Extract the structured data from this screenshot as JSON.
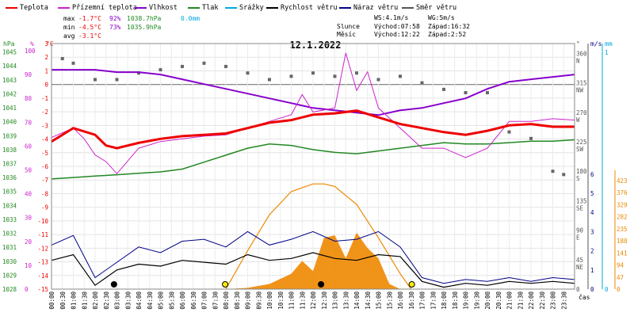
{
  "chart_data": {
    "type": "line",
    "title": "12.1.2022",
    "legend": [
      {
        "name": "Teplota",
        "color": "#ee0000"
      },
      {
        "name": "Přízemní teplota",
        "color": "#cc22cc"
      },
      {
        "name": "Vlhkost",
        "color": "#8800cc"
      },
      {
        "name": "Tlak",
        "color": "#228822"
      },
      {
        "name": "Srážky",
        "color": "#00aadd"
      },
      {
        "name": "Rychlost větru",
        "color": "#000000"
      },
      {
        "name": "Náraz větru",
        "color": "#000088"
      },
      {
        "name": "Směr větru",
        "color": "#555555"
      }
    ],
    "stats": {
      "max": {
        "label": "max",
        "temp": "-1.7°C",
        "hum": "92%",
        "press": "1038.7hPa",
        "rain": "0.0mm"
      },
      "min": {
        "label": "min",
        "temp": "-4.5°C",
        "hum": "73%",
        "press": "1035.9hPa"
      },
      "avg": {
        "label": "avg",
        "temp": "-3.1°C"
      }
    },
    "wind_info": {
      "ws": "WS:4.1m/s",
      "wg": "WG:5m/s"
    },
    "sun_info": {
      "label": "Slunce",
      "rise": "Východ:07:58",
      "set": "Západ:16:32"
    },
    "moon_info": {
      "label": "Měsíc",
      "rise": "Východ:12:22",
      "set": "Západ:2:52"
    },
    "axes": {
      "hpa": {
        "label": "hPa",
        "ticks": [
          "1045",
          "1044",
          "1043",
          "1042",
          "1041",
          "1040",
          "1039",
          "1038",
          "1037",
          "1036",
          "1035",
          "1034",
          "1033",
          "1032",
          "1031",
          "1030",
          "1029",
          "1028"
        ]
      },
      "pct": {
        "label": "%",
        "ticks": [
          "100",
          "90",
          "80",
          "70",
          "60",
          "50",
          "40",
          "30",
          "20",
          "10",
          "0"
        ]
      },
      "degc": {
        "label": "°C",
        "ticks": [
          "3",
          "2",
          "1",
          "0",
          "-1",
          "-2",
          "-3",
          "-4",
          "-5",
          "-6",
          "-7",
          "-8",
          "-9",
          "-10",
          "-11",
          "-12",
          "-13",
          "-14",
          "-15"
        ]
      },
      "dir_deg": {
        "label": "°",
        "ticks": [
          "360",
          "315",
          "270",
          "225",
          "180",
          "135",
          "90",
          "45",
          "0"
        ]
      },
      "dir_lbl": {
        "ticks": [
          "N",
          "NW",
          "W",
          "SW",
          "S",
          "SE",
          "E",
          "NE"
        ]
      },
      "ms": {
        "label": "m/s",
        "ticks": [
          "6",
          "5",
          "4",
          "3",
          "2",
          "1",
          "0"
        ]
      },
      "mm": {
        "label": "mm",
        "ticks": [
          "1",
          "0"
        ]
      },
      "rad": {
        "ticks": [
          "423",
          "376",
          "329",
          "282",
          "235",
          "188",
          "141",
          "94",
          "47",
          "0"
        ]
      },
      "x": {
        "label": "čas",
        "ticks": [
          "00:00",
          "00:30",
          "01:00",
          "01:30",
          "02:00",
          "02:30",
          "03:00",
          "03:30",
          "04:00",
          "04:30",
          "05:00",
          "05:30",
          "06:00",
          "06:30",
          "07:00",
          "07:30",
          "08:00",
          "08:30",
          "09:00",
          "09:30",
          "10:00",
          "10:30",
          "11:00",
          "11:30",
          "12:00",
          "12:30",
          "13:00",
          "13:30",
          "14:00",
          "14:30",
          "15:00",
          "15:30",
          "16:00",
          "16:30",
          "17:00",
          "17:30",
          "18:00",
          "18:30",
          "19:00",
          "19:30",
          "20:00",
          "20:30",
          "21:00",
          "21:30",
          "22:00",
          "22:30",
          "23:00",
          "23:30"
        ]
      }
    },
    "series": {
      "temperature": {
        "x": [
          0,
          1,
          2,
          2.5,
          3,
          4,
          5,
          6,
          7,
          8,
          9,
          10,
          11,
          12,
          13,
          14,
          15,
          16,
          17,
          18,
          19,
          20,
          21,
          22,
          23,
          24
        ],
        "y": [
          -4.0,
          -3.0,
          -3.5,
          -4.3,
          -4.5,
          -4.1,
          -3.8,
          -3.6,
          -3.5,
          -3.4,
          -3.0,
          -2.6,
          -2.4,
          -2.0,
          -1.9,
          -1.7,
          -2.2,
          -2.7,
          -3.0,
          -3.3,
          -3.5,
          -3.2,
          -2.8,
          -2.7,
          -2.9,
          -2.9
        ]
      },
      "ground_temperature": {
        "x": [
          0,
          1,
          1.5,
          2,
          2.5,
          3,
          4,
          5,
          6,
          7,
          8,
          9,
          10,
          11,
          11.5,
          12,
          13,
          13.5,
          14,
          14.5,
          15,
          16,
          17,
          18,
          19,
          20,
          21,
          22,
          23,
          24
        ],
        "y": [
          -3.7,
          -3.0,
          -3.8,
          -5.0,
          -5.5,
          -6.4,
          -4.5,
          -4.0,
          -3.8,
          -3.6,
          -3.5,
          -3.0,
          -2.5,
          -2.0,
          -0.5,
          -1.8,
          -1.5,
          2.6,
          -0.2,
          1.2,
          -1.5,
          -3.0,
          -4.5,
          -4.5,
          -5.2,
          -4.5,
          -2.5,
          -2.5,
          -2.3,
          -2.4
        ]
      },
      "humidity": {
        "x": [
          0,
          1,
          2,
          3,
          4,
          5,
          6,
          7,
          8,
          9,
          10,
          11,
          12,
          13,
          14,
          15,
          16,
          17,
          18,
          19,
          20,
          21,
          22,
          23,
          24
        ],
        "y": [
          92,
          92,
          92,
          91,
          91,
          90,
          88,
          86,
          84,
          82,
          80,
          78,
          76,
          75,
          74,
          73,
          75,
          76,
          78,
          80,
          84,
          87,
          88,
          89,
          90
        ]
      },
      "pressure": {
        "x": [
          0,
          1,
          2,
          3,
          4,
          5,
          6,
          7,
          8,
          9,
          10,
          11,
          12,
          13,
          14,
          15,
          16,
          17,
          18,
          19,
          20,
          21,
          22,
          23,
          24
        ],
        "y": [
          1035.9,
          1036.0,
          1036.1,
          1036.2,
          1036.3,
          1036.4,
          1036.6,
          1037.1,
          1037.6,
          1038.1,
          1038.4,
          1038.3,
          1038.0,
          1037.8,
          1037.7,
          1037.9,
          1038.1,
          1038.3,
          1038.5,
          1038.4,
          1038.4,
          1038.5,
          1038.6,
          1038.6,
          1038.7
        ]
      },
      "wind_speed": {
        "x": [
          0,
          1,
          2,
          3,
          4,
          5,
          6,
          7,
          8,
          9,
          10,
          11,
          12,
          13,
          14,
          15,
          16,
          17,
          18,
          19,
          20,
          21,
          22,
          23,
          24
        ],
        "y": [
          1.5,
          1.8,
          0.2,
          1.0,
          1.3,
          1.2,
          1.5,
          1.4,
          1.3,
          1.8,
          1.5,
          1.6,
          1.9,
          1.6,
          1.5,
          1.8,
          1.7,
          0.4,
          0.1,
          0.3,
          0.2,
          0.4,
          0.3,
          0.4,
          0.3
        ]
      },
      "wind_gust": {
        "x": [
          0,
          1,
          2,
          3,
          4,
          5,
          6,
          7,
          8,
          9,
          10,
          11,
          12,
          13,
          14,
          15,
          16,
          17,
          18,
          19,
          20,
          21,
          22,
          23,
          24
        ],
        "y": [
          2.3,
          2.8,
          0.6,
          1.4,
          2.2,
          1.9,
          2.5,
          2.6,
          2.2,
          3.0,
          2.3,
          2.6,
          3.0,
          2.5,
          2.6,
          3.0,
          2.2,
          0.6,
          0.3,
          0.5,
          0.4,
          0.6,
          0.4,
          0.6,
          0.5
        ]
      },
      "solar_radiation": {
        "x": [
          8,
          9,
          10,
          11,
          11.5,
          12,
          12.5,
          13,
          13.5,
          14,
          14.5,
          15,
          15.5,
          16
        ],
        "y": [
          0,
          5,
          20,
          60,
          110,
          70,
          200,
          210,
          120,
          220,
          160,
          120,
          20,
          0
        ]
      },
      "theoretical_radiation": {
        "x": [
          8,
          9,
          10,
          11,
          12,
          12.5,
          13,
          14,
          15,
          16,
          16.5
        ],
        "y": [
          0,
          150,
          290,
          380,
          410,
          410,
          400,
          330,
          200,
          60,
          0
        ]
      },
      "wind_direction": {
        "x": [
          0.5,
          1,
          2,
          3,
          4,
          5,
          6,
          7,
          8,
          9,
          10,
          11,
          12,
          13,
          14,
          15,
          16,
          17,
          18,
          19,
          20,
          21,
          22,
          23,
          23.5
        ],
        "y": [
          352,
          345,
          320,
          320,
          330,
          335,
          340,
          345,
          340,
          330,
          320,
          325,
          330,
          325,
          330,
          320,
          325,
          315,
          305,
          300,
          300,
          240,
          230,
          180,
          175
        ]
      }
    }
  }
}
